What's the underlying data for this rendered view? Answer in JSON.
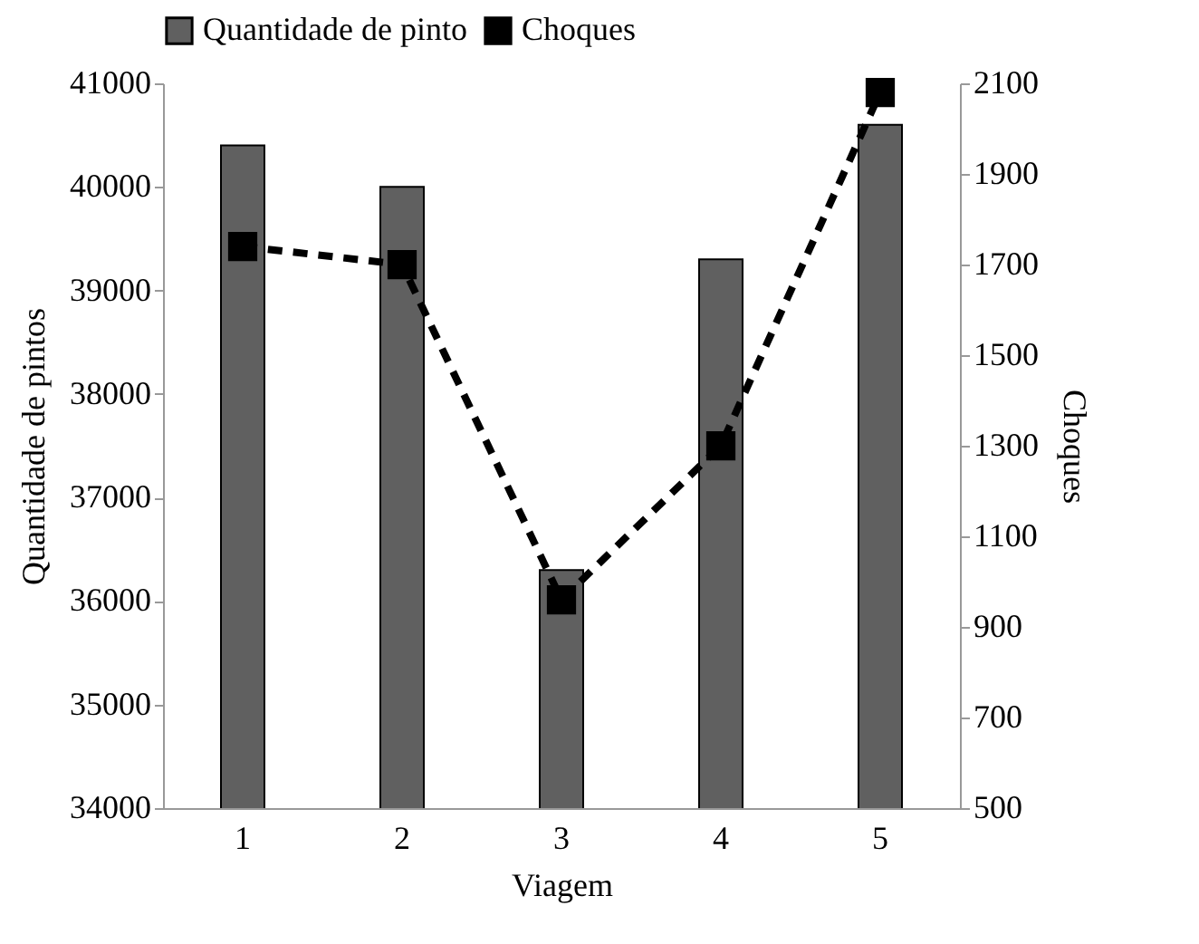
{
  "chart_data": {
    "type": "bar",
    "xlabel": "Viagem",
    "ylabel": "Quantidade de pintos",
    "y2label": "Choques",
    "categories": [
      "1",
      "2",
      "3",
      "4",
      "5"
    ],
    "series": [
      {
        "name": "Quantidade de pinto",
        "color": "#606060",
        "values": [
          40400,
          40000,
          36300,
          39300,
          40600
        ]
      },
      {
        "name": "Choques",
        "type": "line",
        "axis": "y2",
        "color": "#000000",
        "line_style": "dashed",
        "marker": "square",
        "values": [
          1740,
          1700,
          960,
          1300,
          2080
        ]
      }
    ],
    "ylim": [
      34000,
      41000
    ],
    "yticks": [
      34000,
      35000,
      36000,
      37000,
      38000,
      39000,
      40000,
      41000
    ],
    "y2lim": [
      500,
      2100
    ],
    "y2ticks": [
      500,
      700,
      900,
      1100,
      1300,
      1500,
      1700,
      1900,
      2100
    ],
    "grid": false,
    "legend": "top"
  }
}
